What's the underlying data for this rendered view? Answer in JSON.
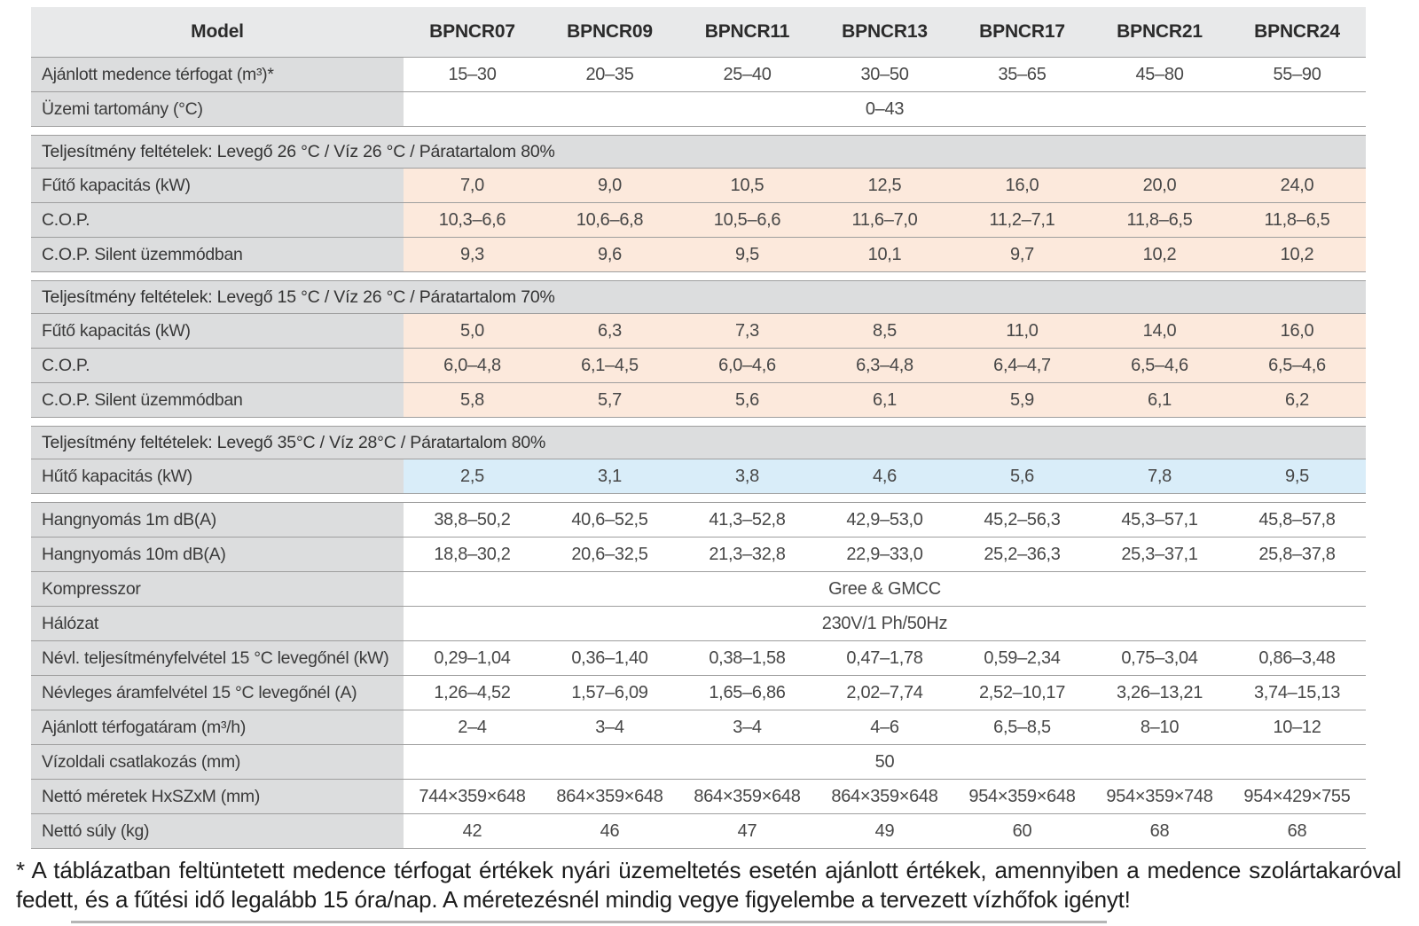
{
  "colors": {
    "peach": "#fce9dc",
    "blue": "#d9edf9",
    "gray_label": "#dcddde",
    "gray_header": "#e8e9ea"
  },
  "header": {
    "model": "Model",
    "columns": [
      "BPNCR07",
      "BPNCR09",
      "BPNCR11",
      "BPNCR13",
      "BPNCR17",
      "BPNCR21",
      "BPNCR24"
    ]
  },
  "rows": [
    {
      "type": "data",
      "label": "Ajánlott medence térfogat (m³)*",
      "values": [
        "15–30",
        "20–35",
        "25–40",
        "30–50",
        "35–65",
        "45–80",
        "55–90"
      ]
    },
    {
      "type": "merged",
      "label": "Üzemi tartomány (°C)",
      "value": "0–43"
    },
    {
      "type": "gap"
    },
    {
      "type": "section",
      "label": "Teljesítmény feltételek: Levegő 26 °C / Víz 26 °C / Páratartalom 80%"
    },
    {
      "type": "data",
      "tint": "peach",
      "label": "Fűtő kapacitás (kW)",
      "values": [
        "7,0",
        "9,0",
        "10,5",
        "12,5",
        "16,0",
        "20,0",
        "24,0"
      ]
    },
    {
      "type": "data",
      "tint": "peach",
      "label": "C.O.P.",
      "values": [
        "10,3–6,6",
        "10,6–6,8",
        "10,5–6,6",
        "11,6–7,0",
        "11,2–7,1",
        "11,8–6,5",
        "11,8–6,5"
      ]
    },
    {
      "type": "data",
      "tint": "peach",
      "label": "C.O.P. Silent üzemmódban",
      "values": [
        "9,3",
        "9,6",
        "9,5",
        "10,1",
        "9,7",
        "10,2",
        "10,2"
      ]
    },
    {
      "type": "gap"
    },
    {
      "type": "section",
      "label": "Teljesítmény feltételek: Levegő 15 °C / Víz 26 °C / Páratartalom 70%"
    },
    {
      "type": "data",
      "tint": "peach",
      "label": "Fűtő kapacitás (kW)",
      "values": [
        "5,0",
        "6,3",
        "7,3",
        "8,5",
        "11,0",
        "14,0",
        "16,0"
      ]
    },
    {
      "type": "data",
      "tint": "peach",
      "label": "C.O.P.",
      "values": [
        "6,0–4,8",
        "6,1–4,5",
        "6,0–4,6",
        "6,3–4,8",
        "6,4–4,7",
        "6,5–4,6",
        "6,5–4,6"
      ]
    },
    {
      "type": "data",
      "tint": "peach",
      "label": "C.O.P. Silent üzemmódban",
      "values": [
        "5,8",
        "5,7",
        "5,6",
        "6,1",
        "5,9",
        "6,1",
        "6,2"
      ]
    },
    {
      "type": "gap"
    },
    {
      "type": "section",
      "label": "Teljesítmény feltételek: Levegő 35°C / Víz 28°C / Páratartalom 80%"
    },
    {
      "type": "data",
      "tint": "blue",
      "label": "Hűtő kapacitás (kW)",
      "values": [
        "2,5",
        "3,1",
        "3,8",
        "4,6",
        "5,6",
        "7,8",
        "9,5"
      ]
    },
    {
      "type": "gap"
    },
    {
      "type": "data",
      "label": "Hangnyomás 1m dB(A)",
      "values": [
        "38,8–50,2",
        "40,6–52,5",
        "41,3–52,8",
        "42,9–53,0",
        "45,2–56,3",
        "45,3–57,1",
        "45,8–57,8"
      ]
    },
    {
      "type": "data",
      "label": "Hangnyomás 10m dB(A)",
      "values": [
        "18,8–30,2",
        "20,6–32,5",
        "21,3–32,8",
        "22,9–33,0",
        "25,2–36,3",
        "25,3–37,1",
        "25,8–37,8"
      ]
    },
    {
      "type": "merged",
      "label": "Kompresszor",
      "value": "Gree & GMCC"
    },
    {
      "type": "merged",
      "label": "Hálózat",
      "value": "230V/1 Ph/50Hz"
    },
    {
      "type": "data",
      "label": "Névl. teljesítményfelvétel 15 °C levegőnél (kW)",
      "values": [
        "0,29–1,04",
        "0,36–1,40",
        "0,38–1,58",
        "0,47–1,78",
        "0,59–2,34",
        "0,75–3,04",
        "0,86–3,48"
      ]
    },
    {
      "type": "data",
      "label": "Névleges áramfelvétel 15 °C levegőnél (A)",
      "values": [
        "1,26–4,52",
        "1,57–6,09",
        "1,65–6,86",
        "2,02–7,74",
        "2,52–10,17",
        "3,26–13,21",
        "3,74–15,13"
      ]
    },
    {
      "type": "data",
      "label": "Ajánlott térfogatáram (m³/h)",
      "values": [
        "2–4",
        "3–4",
        "3–4",
        "4–6",
        "6,5–8,5",
        "8–10",
        "10–12"
      ]
    },
    {
      "type": "merged",
      "label": "Vízoldali csatlakozás (mm)",
      "value": "50"
    },
    {
      "type": "data",
      "label": "Nettó méretek HxSZxM (mm)",
      "values": [
        "744×359×648",
        "864×359×648",
        "864×359×648",
        "864×359×648",
        "954×359×648",
        "954×359×748",
        "954×429×755"
      ]
    },
    {
      "type": "data",
      "label": "Nettó súly (kg)",
      "values": [
        "42",
        "46",
        "47",
        "49",
        "60",
        "68",
        "68"
      ]
    }
  ],
  "footnote": "* A táblázatban feltüntetett medence térfogat értékek nyári üzemeltetés esetén ajánlott értékek, amennyiben a medence szolártakaróval fedett, és a fűtési idő legalább 15 óra/nap. A méretezésnél mindig vegye figyelembe a tervezett vízhőfok igényt!"
}
